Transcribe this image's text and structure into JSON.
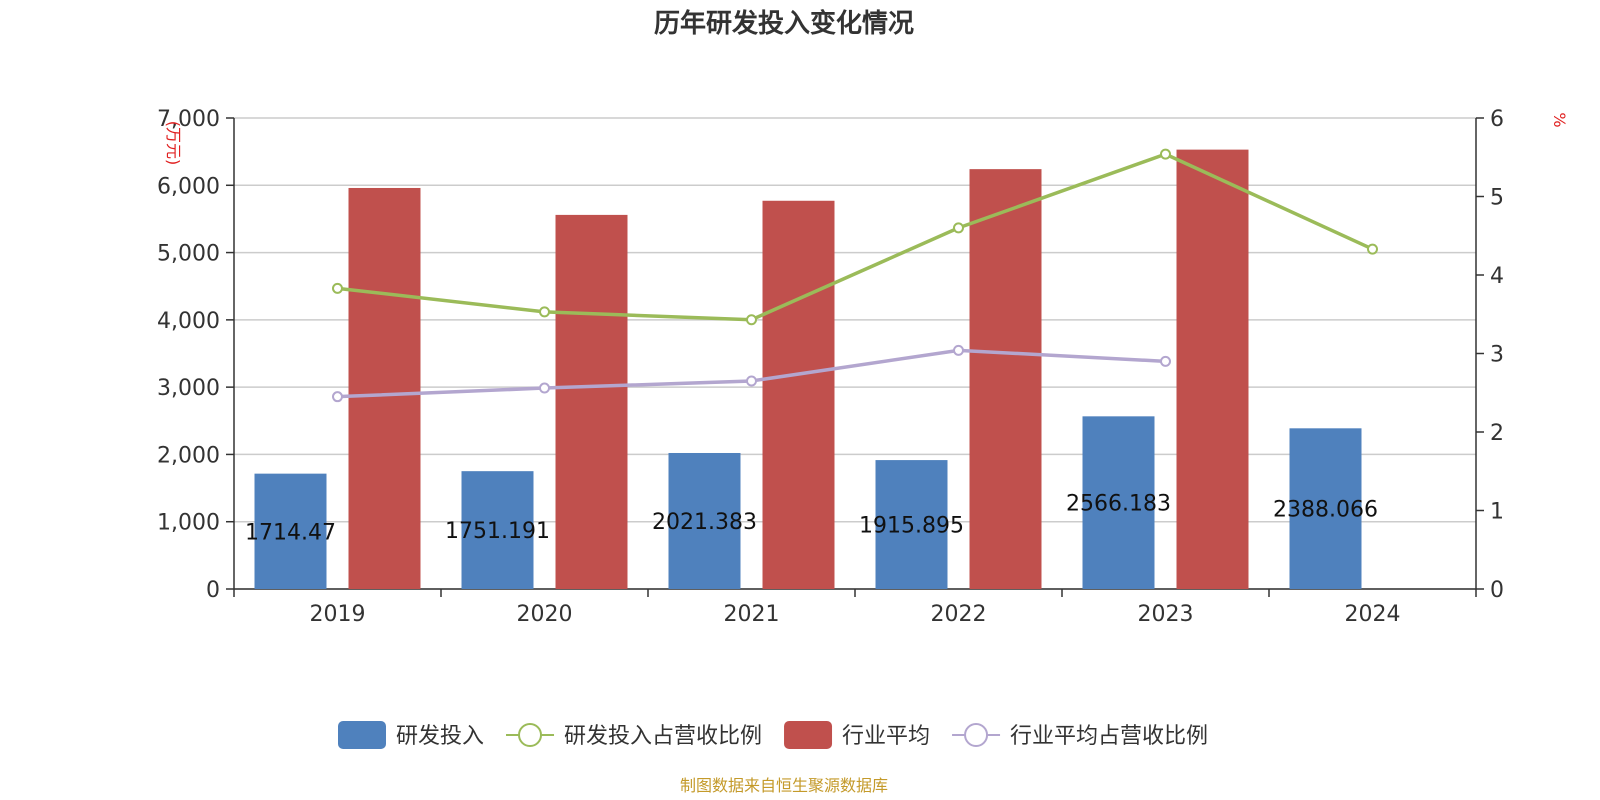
{
  "chart_data": {
    "type": "bar",
    "title": "历年研发投入变化情况",
    "categories": [
      "2019",
      "2020",
      "2021",
      "2022",
      "2023",
      "2024"
    ],
    "y_left": {
      "label": "(万元)",
      "range": [
        0,
        7000
      ],
      "ticks": [
        "0",
        "1,000",
        "2,000",
        "3,000",
        "4,000",
        "5,000",
        "6,000",
        "7,000"
      ]
    },
    "y_right": {
      "label": "%",
      "range": [
        0,
        6
      ],
      "ticks": [
        "0",
        "1",
        "2",
        "3",
        "4",
        "5",
        "6"
      ]
    },
    "grid": true,
    "legend_position": "bottom",
    "series": [
      {
        "name": "研发投入",
        "type": "bar",
        "axis": "left",
        "color": "#4f81bd",
        "values": [
          1714.47,
          1751.191,
          2021.383,
          1915.895,
          2566.183,
          2388.066
        ],
        "data_labels": [
          "1714.47",
          "1751.191",
          "2021.383",
          "1915.895",
          "2566.183",
          "2388.066"
        ]
      },
      {
        "name": "研发投入占营收比例",
        "type": "line",
        "axis": "right",
        "color": "#9bbb59",
        "values": [
          3.83,
          3.53,
          3.43,
          4.6,
          5.54,
          4.33
        ]
      },
      {
        "name": "行业平均",
        "type": "bar",
        "axis": "left",
        "color": "#c0504d",
        "values": [
          5960,
          5560,
          5770,
          6240,
          6530,
          null
        ]
      },
      {
        "name": "行业平均占营收比例",
        "type": "line",
        "axis": "right",
        "color": "#b3a6cf",
        "values": [
          2.45,
          2.56,
          2.65,
          3.04,
          2.9,
          null
        ]
      }
    ]
  },
  "source": "制图数据来自恒生聚源数据库"
}
